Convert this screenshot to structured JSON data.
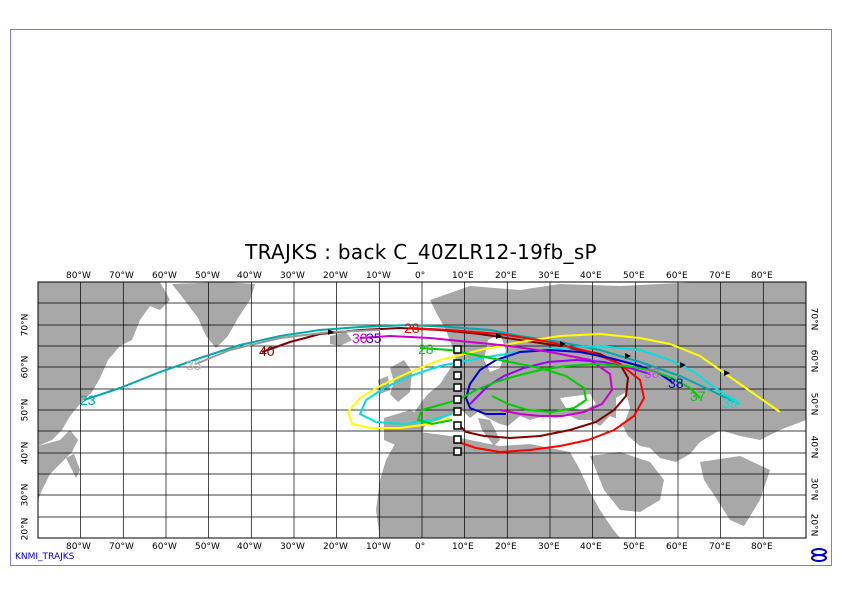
{
  "title": "TRAJKS : back C_40ZLR12-19fb_sP",
  "footer": "KNMI_TRAJKS",
  "lon_labels": [
    "80°W",
    "70°W",
    "60°W",
    "50°W",
    "40°W",
    "30°W",
    "20°W",
    "10°W",
    "0°",
    "10°E",
    "20°E",
    "30°E",
    "40°E",
    "50°E",
    "60°E",
    "70°E",
    "80°E"
  ],
  "lat_labels": [
    "70°N",
    "60°N",
    "50°N",
    "40°N",
    "30°N",
    "20°N"
  ],
  "trajectory_labels": [
    {
      "text": "23",
      "color": "#00aaaa"
    },
    {
      "text": "35",
      "color": "#bbbbbb"
    },
    {
      "text": "40",
      "color": "#800000"
    },
    {
      "text": "30",
      "color": "#cc00cc"
    },
    {
      "text": "35",
      "color": "#4000c0"
    },
    {
      "text": "28",
      "color": "#ff0000"
    },
    {
      "text": "28",
      "color": "#00cc00"
    },
    {
      "text": "38",
      "color": "#cc44ee"
    },
    {
      "text": "38",
      "color": "#0000cc"
    },
    {
      "text": "37",
      "color": "#00cc00"
    },
    {
      "text": "35",
      "color": "#00e0e0"
    }
  ],
  "colors": {
    "land": "#a8a8a8",
    "grid": "#000000",
    "frame": "#8080c0",
    "yellow": "#ffff00",
    "cyan": "#00e0e0",
    "teal": "#00aaaa",
    "red": "#ff0000",
    "maroon": "#800000",
    "blue": "#0000cc",
    "magenta": "#cc00cc",
    "green": "#00cc00",
    "purple": "#9900ff",
    "gray": "#999999"
  }
}
